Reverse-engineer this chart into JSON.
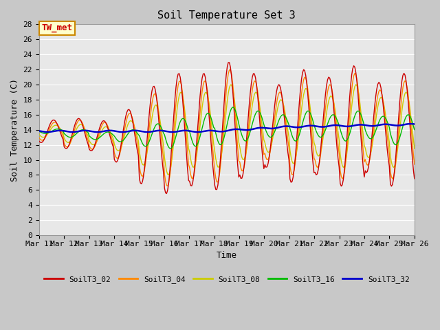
{
  "title": "Soil Temperature Set 3",
  "xlabel": "Time",
  "ylabel": "Soil Temperature (C)",
  "ylim": [
    0,
    28
  ],
  "yticks": [
    0,
    2,
    4,
    6,
    8,
    10,
    12,
    14,
    16,
    18,
    20,
    22,
    24,
    26,
    28
  ],
  "x_start_day": 11,
  "x_end_day": 26,
  "xtick_days": [
    11,
    12,
    13,
    14,
    15,
    16,
    17,
    18,
    19,
    20,
    21,
    22,
    23,
    24,
    25,
    26
  ],
  "series_colors": {
    "SoilT3_02": "#cc0000",
    "SoilT3_04": "#ff8800",
    "SoilT3_08": "#cccc00",
    "SoilT3_16": "#00bb00",
    "SoilT3_32": "#0000cc"
  },
  "series_names": [
    "SoilT3_02",
    "SoilT3_04",
    "SoilT3_08",
    "SoilT3_16",
    "SoilT3_32"
  ],
  "legend_colors": [
    "#cc0000",
    "#ff8800",
    "#cccc00",
    "#00bb00",
    "#0000cc"
  ],
  "annotation_text": "TW_met",
  "annotation_color": "#cc0000",
  "annotation_bg": "#ffffcc",
  "annotation_border": "#cc8800",
  "plot_bg_color": "#e8e8e8",
  "fig_bg_color": "#c8c8c8",
  "grid_color": "#ffffff",
  "title_fontsize": 11,
  "axis_fontsize": 9,
  "tick_fontsize": 8
}
